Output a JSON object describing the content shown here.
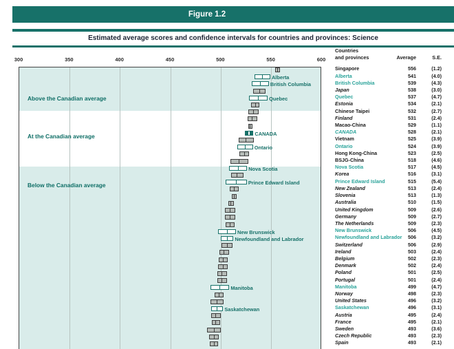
{
  "figure_label": "Figure 1.2",
  "subtitle": "Estimated average scores and confidence intervals for countries and provinces: Science",
  "colors": {
    "teal": "#177169",
    "teal_dark": "#0e6e66",
    "teal_light": "#2aa39a",
    "band": "#d9ecea",
    "country_box_fill": "#b5bbb7",
    "country_box_border": "#3e3e3e"
  },
  "table_header": {
    "col1_line1": "Countries",
    "col1_line2": "and provinces",
    "col2": "Average",
    "col3": "S.E."
  },
  "sections": [
    {
      "label": "Above the Canadian average",
      "first_row": 0,
      "last_row": 5,
      "tinted": true
    },
    {
      "label": "At the Canadian average",
      "first_row": 6,
      "last_row": 13,
      "tinted": false
    },
    {
      "label": "Below the Canadian average",
      "first_row": 14,
      "last_row": 39,
      "tinted": true
    }
  ],
  "chart_data": {
    "type": "bar",
    "subtype": "confidence-interval-boxes",
    "title": "Estimated average scores and confidence intervals for countries and provinces: Science",
    "xlabel": "",
    "ylabel": "",
    "x_axis": {
      "min": 300,
      "max": 600,
      "ticks": [
        300,
        350,
        400,
        450,
        500,
        550,
        600
      ]
    },
    "interval_half_width": "1.96 × S.E.",
    "legend_position": "none",
    "grid": true,
    "rows": [
      {
        "name": "Singapore",
        "average": 556,
        "se": 1.2,
        "kind": "country",
        "italic": false
      },
      {
        "name": "Alberta",
        "average": 541,
        "se": 4.0,
        "kind": "province",
        "italic": false
      },
      {
        "name": "British Columbia",
        "average": 539,
        "se": 4.3,
        "kind": "province",
        "italic": false
      },
      {
        "name": "Japan",
        "average": 538,
        "se": 3.0,
        "kind": "country",
        "italic": true
      },
      {
        "name": "Quebec",
        "average": 537,
        "se": 4.7,
        "kind": "province",
        "italic": false
      },
      {
        "name": "Estonia",
        "average": 534,
        "se": 2.1,
        "kind": "country",
        "italic": true
      },
      {
        "name": "Chinese Taipei",
        "average": 532,
        "se": 2.7,
        "kind": "country",
        "italic": false
      },
      {
        "name": "Finland",
        "average": 531,
        "se": 2.4,
        "kind": "country",
        "italic": true
      },
      {
        "name": "Macao-China",
        "average": 529,
        "se": 1.1,
        "kind": "country",
        "italic": false
      },
      {
        "name": "CANADA",
        "average": 528,
        "se": 2.1,
        "kind": "canada",
        "italic": true
      },
      {
        "name": "Vietnam",
        "average": 525,
        "se": 3.9,
        "kind": "country",
        "italic": false
      },
      {
        "name": "Ontario",
        "average": 524,
        "se": 3.9,
        "kind": "province",
        "italic": false
      },
      {
        "name": "Hong Kong-China",
        "average": 523,
        "se": 2.5,
        "kind": "country",
        "italic": false
      },
      {
        "name": "BSJG-China",
        "average": 518,
        "se": 4.6,
        "kind": "country",
        "italic": false
      },
      {
        "name": "Nova Scotia",
        "average": 517,
        "se": 4.5,
        "kind": "province",
        "italic": false
      },
      {
        "name": "Korea",
        "average": 516,
        "se": 3.1,
        "kind": "country",
        "italic": true
      },
      {
        "name": "Prince Edward Island",
        "average": 515,
        "se": 5.4,
        "kind": "province",
        "italic": false
      },
      {
        "name": "New Zealand",
        "average": 513,
        "se": 2.4,
        "kind": "country",
        "italic": true
      },
      {
        "name": "Slovenia",
        "average": 513,
        "se": 1.3,
        "kind": "country",
        "italic": true
      },
      {
        "name": "Australia",
        "average": 510,
        "se": 1.5,
        "kind": "country",
        "italic": true
      },
      {
        "name": "United Kingdom",
        "average": 509,
        "se": 2.6,
        "kind": "country",
        "italic": true
      },
      {
        "name": "Germany",
        "average": 509,
        "se": 2.7,
        "kind": "country",
        "italic": true
      },
      {
        "name": "The Netherlands",
        "average": 509,
        "se": 2.3,
        "kind": "country",
        "italic": true
      },
      {
        "name": "New Brunswick",
        "average": 506,
        "se": 4.5,
        "kind": "province",
        "italic": false
      },
      {
        "name": "Newfoundland and Labrador",
        "average": 506,
        "se": 3.2,
        "kind": "province",
        "italic": false
      },
      {
        "name": "Switzerland",
        "average": 506,
        "se": 2.9,
        "kind": "country",
        "italic": true
      },
      {
        "name": "Ireland",
        "average": 503,
        "se": 2.4,
        "kind": "country",
        "italic": true
      },
      {
        "name": "Belgium",
        "average": 502,
        "se": 2.3,
        "kind": "country",
        "italic": true
      },
      {
        "name": "Denmark",
        "average": 502,
        "se": 2.4,
        "kind": "country",
        "italic": true
      },
      {
        "name": "Poland",
        "average": 501,
        "se": 2.5,
        "kind": "country",
        "italic": true
      },
      {
        "name": "Portugal",
        "average": 501,
        "se": 2.4,
        "kind": "country",
        "italic": true
      },
      {
        "name": "Manitoba",
        "average": 499,
        "se": 4.7,
        "kind": "province",
        "italic": false
      },
      {
        "name": "Norway",
        "average": 498,
        "se": 2.3,
        "kind": "country",
        "italic": true
      },
      {
        "name": "United States",
        "average": 496,
        "se": 3.2,
        "kind": "country",
        "italic": true
      },
      {
        "name": "Saskatchewan",
        "average": 496,
        "se": 3.1,
        "kind": "province",
        "italic": false
      },
      {
        "name": "Austria",
        "average": 495,
        "se": 2.4,
        "kind": "country",
        "italic": true
      },
      {
        "name": "France",
        "average": 495,
        "se": 2.1,
        "kind": "country",
        "italic": true
      },
      {
        "name": "Sweden",
        "average": 493,
        "se": 3.6,
        "kind": "country",
        "italic": true
      },
      {
        "name": "Czech Republic",
        "average": 493,
        "se": 2.3,
        "kind": "country",
        "italic": true
      },
      {
        "name": "Spain",
        "average": 493,
        "se": 2.1,
        "kind": "country",
        "italic": true
      }
    ]
  }
}
